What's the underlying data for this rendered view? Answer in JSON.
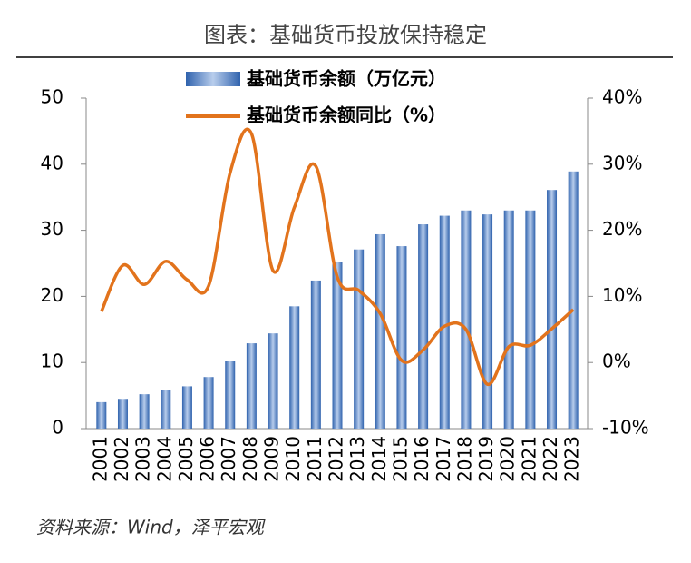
{
  "chart_data": {
    "type": "bar",
    "title": "图表：基础货币投放保持稳定",
    "source": "资料来源：Wind，泽平宏观",
    "categories": [
      "2001",
      "2002",
      "2003",
      "2004",
      "2005",
      "2006",
      "2007",
      "2008",
      "2009",
      "2010",
      "2011",
      "2012",
      "2013",
      "2014",
      "2015",
      "2016",
      "2017",
      "2018",
      "2019",
      "2020",
      "2021",
      "2022",
      "2023"
    ],
    "series": [
      {
        "name": "基础货币余额（万亿元）",
        "type": "bar",
        "color": "#4a7ec4",
        "values": [
          4.0,
          4.5,
          5.2,
          5.9,
          6.4,
          7.8,
          10.2,
          12.9,
          14.4,
          18.5,
          22.4,
          25.2,
          27.1,
          29.4,
          27.6,
          30.9,
          32.2,
          33.0,
          32.4,
          33.0,
          33.0,
          36.1,
          38.9
        ]
      },
      {
        "name": "基础货币余额同比（%）",
        "type": "line",
        "axis": "y2",
        "color": "#e2731c",
        "values": [
          7.7,
          14.7,
          11.8,
          15.3,
          12.5,
          11.6,
          28.7,
          34.6,
          13.9,
          23.5,
          29.7,
          12.9,
          10.9,
          7.4,
          0.3,
          1.9,
          5.5,
          5.0,
          -3.3,
          2.4,
          2.6,
          5.1,
          8.0
        ]
      }
    ],
    "ylim": [
      0,
      50
    ],
    "yticks": [
      0,
      10,
      20,
      30,
      40,
      50
    ],
    "y2lim": [
      -10,
      40
    ],
    "y2ticks": [
      {
        "value": -10,
        "label": "-10%"
      },
      {
        "value": 0,
        "label": "0%"
      },
      {
        "value": 10,
        "label": "10%"
      },
      {
        "value": 20,
        "label": "20%"
      },
      {
        "value": 30,
        "label": "30%"
      },
      {
        "value": 40,
        "label": "40%"
      }
    ]
  }
}
